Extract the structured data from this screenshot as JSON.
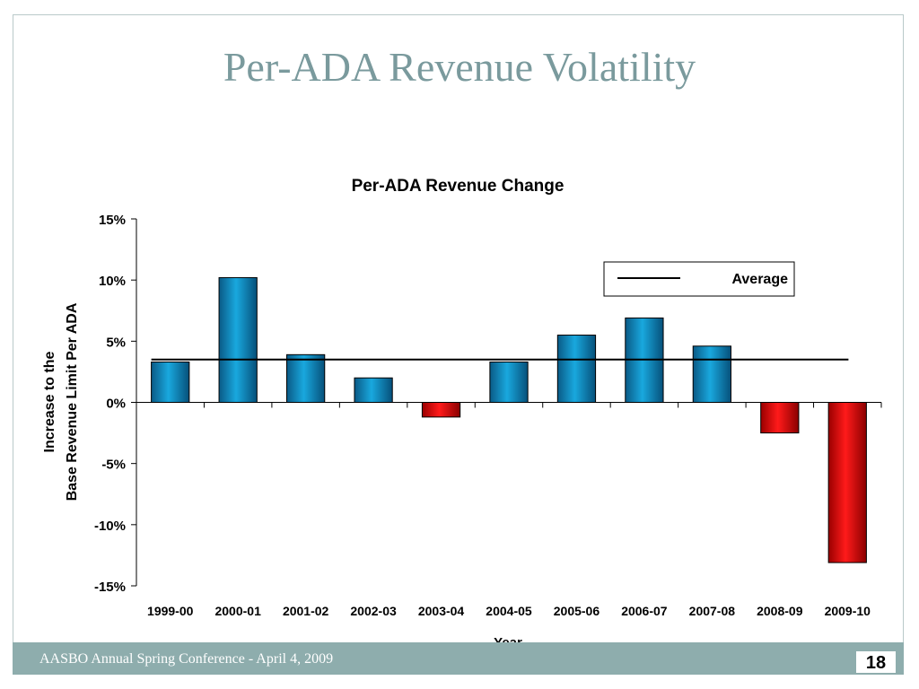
{
  "slide": {
    "title": "Per-ADA Revenue Volatility",
    "footer": "AASBO Annual Spring Conference - April 4, 2009",
    "page_number": "18"
  },
  "colors": {
    "title": "#7a9a9d",
    "footer_bar": "#8eadad",
    "positive_bar": "#0a86c0",
    "negative_bar": "#e00000",
    "average_line": "#000000"
  },
  "chart_data": {
    "type": "bar",
    "title": "Per-ADA Revenue Change",
    "xlabel": "Year",
    "ylabel": [
      "Increase to the",
      "Base Revenue Limit Per ADA"
    ],
    "categories": [
      "1999-00",
      "2000-01",
      "2001-02",
      "2002-03",
      "2003-04",
      "2004-05",
      "2005-06",
      "2006-07",
      "2007-08",
      "2008-09",
      "2009-10"
    ],
    "values": [
      3.3,
      10.2,
      3.9,
      2.0,
      -1.2,
      3.3,
      5.5,
      6.9,
      4.6,
      -2.5,
      -13.1
    ],
    "average": 3.5,
    "ylim": [
      -15,
      15
    ],
    "yticks": [
      "15%",
      "10%",
      "5%",
      "0%",
      "-5%",
      "-10%",
      "-15%"
    ],
    "ytick_values": [
      15,
      10,
      5,
      0,
      -5,
      -10,
      -15
    ],
    "legend": {
      "label": "Average",
      "position": "top-right"
    },
    "grid": false
  }
}
